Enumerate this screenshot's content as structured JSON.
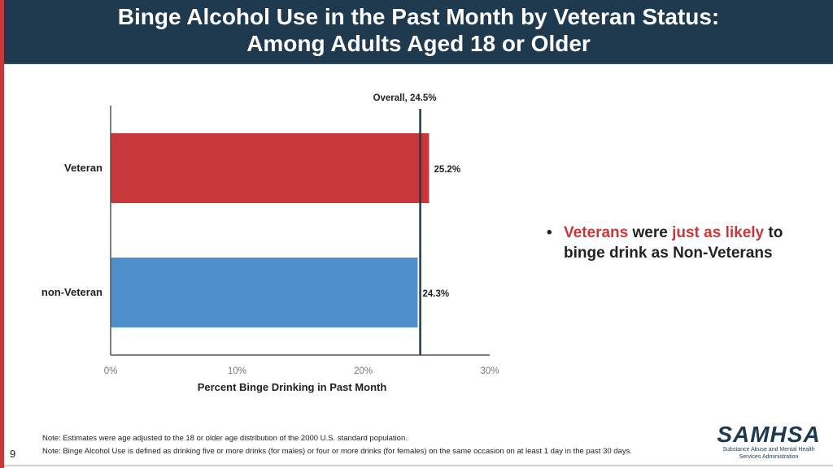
{
  "header": {
    "title_line1": "Binge Alcohol Use in the Past Month by Veteran Status:",
    "title_line2": "Among Adults Aged 18 or Older"
  },
  "chart_data": {
    "type": "bar",
    "orientation": "horizontal",
    "categories": [
      "Veteran",
      "non-Veteran"
    ],
    "values": [
      25.2,
      24.3
    ],
    "value_labels": [
      "25.2%",
      "24.3%"
    ],
    "colors": [
      "#c8383a",
      "#4f8fcc"
    ],
    "xlabel": "Percent Binge Drinking in Past Month",
    "xlim": [
      0,
      30
    ],
    "xticks": [
      0,
      10,
      20,
      30
    ],
    "xtick_labels": [
      "0%",
      "10%",
      "20%",
      "30%"
    ],
    "reference_line": {
      "value": 24.5,
      "label": "Overall, 24.5%"
    },
    "grid": false
  },
  "bullet": {
    "part1": "Veterans",
    "part2": " were ",
    "part3": "just as likely",
    "part4": " to binge drink as Non-Veterans"
  },
  "notes": {
    "note1": "Note: Estimates were age adjusted to the 18 or older age distribution of the 2000 U.S. standard population.",
    "note2": "Note: Binge Alcohol Use is defined as drinking five or more drinks (for males) or four or more drinks (for females) on the same occasion on at least 1 day in the past 30 days."
  },
  "page_number": "9",
  "logo": {
    "name": "SAMHSA",
    "subtitle_line1": "Substance Abuse and Mental Health",
    "subtitle_line2": "Services Administration"
  },
  "theme": {
    "header_bg": "#1f3a4f",
    "accent": "#c8383a"
  }
}
